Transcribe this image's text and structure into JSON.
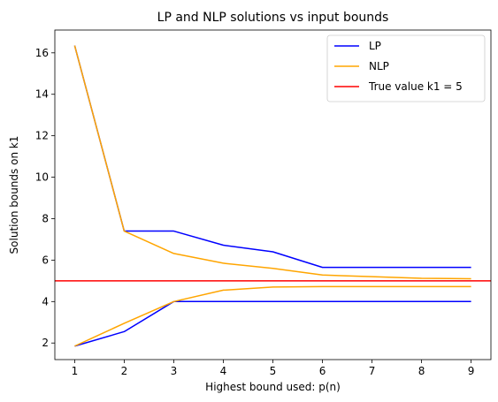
{
  "chart_data": {
    "type": "line",
    "title": "LP and NLP solutions vs input bounds",
    "xlabel": "Highest bound used: p(n)",
    "ylabel": "Solution bounds on k1",
    "x": [
      1,
      2,
      3,
      4,
      5,
      6,
      7,
      8,
      9
    ],
    "xlim": [
      0.6,
      9.4
    ],
    "ylim": [
      1.2,
      17.1
    ],
    "xticks": [
      1,
      2,
      3,
      4,
      5,
      6,
      7,
      8,
      9
    ],
    "yticks": [
      2,
      4,
      6,
      8,
      10,
      12,
      14,
      16
    ],
    "grid": false,
    "legend_position": "top-right",
    "series": [
      {
        "name": "LP",
        "color": "#0000ff",
        "legend": true,
        "values": [
          16.35,
          7.4,
          7.4,
          6.72,
          6.4,
          5.65,
          5.65,
          5.65,
          5.65
        ]
      },
      {
        "name": "",
        "color": "#0000ff",
        "legend": false,
        "values": [
          1.85,
          2.55,
          4.0,
          4.0,
          4.0,
          4.0,
          4.0,
          4.0,
          4.0
        ]
      },
      {
        "name": "NLP",
        "color": "#ffa500",
        "legend": true,
        "values": [
          16.35,
          7.4,
          6.32,
          5.85,
          5.6,
          5.28,
          5.2,
          5.12,
          5.1
        ]
      },
      {
        "name": "",
        "color": "#ffa500",
        "legend": false,
        "values": [
          1.85,
          2.95,
          4.0,
          4.55,
          4.7,
          4.72,
          4.72,
          4.72,
          4.72
        ]
      }
    ],
    "hline": {
      "name": "True value k1 = 5",
      "y": 5,
      "color": "#ff0000"
    }
  }
}
